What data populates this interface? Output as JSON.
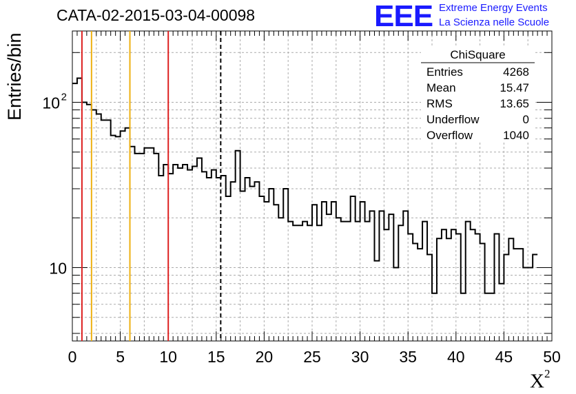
{
  "header": {
    "title": "CATA-02-2015-03-04-00098",
    "logo": "EEE",
    "logo_line1": "Extreme Energy Events",
    "logo_line2": "La Scienza nelle Scuole"
  },
  "chart_data": {
    "type": "histogram",
    "ylabel": "Entries/bin",
    "xlabel_base": "X",
    "xlabel_sup": "2",
    "xlim": [
      0,
      50
    ],
    "ylim": [
      3.6,
      270
    ],
    "yscale": "log",
    "grid": true,
    "xticks": [
      0,
      5,
      10,
      15,
      20,
      25,
      30,
      35,
      40,
      45,
      50
    ],
    "yticks": [
      {
        "value": 10,
        "label": "10",
        "sup": ""
      },
      {
        "value": 100,
        "label": "10",
        "sup": "2"
      }
    ],
    "bin_width": 0.5,
    "values": [
      130,
      140,
      100,
      97,
      90,
      85,
      78,
      78,
      63,
      62,
      67,
      70,
      54,
      49,
      49,
      53,
      53,
      49,
      36,
      42,
      37,
      42,
      40,
      42,
      39,
      41,
      46,
      38,
      35,
      39,
      35,
      36,
      27,
      33,
      51,
      29,
      35,
      31,
      33,
      27,
      25,
      30,
      24,
      20,
      30,
      19,
      18,
      18,
      19,
      18,
      24,
      18,
      25,
      21,
      25,
      20,
      19,
      19,
      27,
      19,
      25,
      19,
      22,
      11,
      22,
      17,
      21,
      10,
      18,
      22,
      16,
      14,
      13,
      19,
      12,
      7,
      15,
      17,
      15,
      17,
      16,
      7,
      19,
      17,
      16,
      14,
      7,
      7,
      16,
      8,
      12,
      15,
      13,
      13,
      10,
      10,
      12
    ],
    "vlines": [
      {
        "x": 1,
        "color": "#dd1f1f",
        "style": "solid"
      },
      {
        "x": 2,
        "color": "#eeb011",
        "style": "solid"
      },
      {
        "x": 6,
        "color": "#eeb011",
        "style": "solid"
      },
      {
        "x": 10,
        "color": "#dd1f1f",
        "style": "solid"
      },
      {
        "x": 15.47,
        "color": "#000000",
        "style": "dashed"
      }
    ],
    "stats": {
      "name": "ChiSquare",
      "rows": [
        {
          "label": "Entries",
          "value": "4268"
        },
        {
          "label": "Mean",
          "value": "15.47"
        },
        {
          "label": "RMS",
          "value": "13.65"
        },
        {
          "label": "Underflow",
          "value": "0"
        },
        {
          "label": "Overflow",
          "value": "1040"
        }
      ]
    }
  }
}
